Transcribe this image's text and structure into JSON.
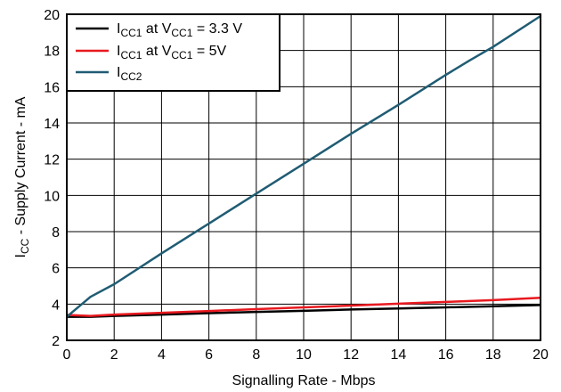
{
  "chart_data": {
    "type": "line",
    "xlabel": "Signalling Rate - Mbps",
    "ylabel": {
      "main": "I",
      "sub": "CC",
      "rest": " - Supply Current - mA"
    },
    "xlim": [
      0,
      20
    ],
    "ylim": [
      2,
      20
    ],
    "xticks": [
      0,
      2,
      4,
      6,
      8,
      10,
      12,
      14,
      16,
      18,
      20
    ],
    "yticks": [
      2,
      4,
      6,
      8,
      10,
      12,
      14,
      16,
      18,
      20
    ],
    "grid": true,
    "legend_position": "top-left",
    "series": [
      {
        "label_parts": [
          [
            "I",
            ""
          ],
          [
            "CC1",
            "sub"
          ],
          [
            " at V",
            ""
          ],
          [
            "CC1",
            "sub"
          ],
          [
            " = 3.3 V",
            ""
          ]
        ],
        "color": "#000000",
        "x": [
          0,
          1,
          2,
          4,
          6,
          8,
          10,
          12,
          14,
          16,
          18,
          20
        ],
        "y": [
          3.3,
          3.3,
          3.35,
          3.42,
          3.5,
          3.57,
          3.63,
          3.7,
          3.76,
          3.82,
          3.88,
          3.95
        ]
      },
      {
        "label_parts": [
          [
            "I",
            ""
          ],
          [
            "CC1",
            "sub"
          ],
          [
            " at V",
            ""
          ],
          [
            "CC1",
            "sub"
          ],
          [
            " = 5V",
            ""
          ]
        ],
        "color": "#e8191f",
        "x": [
          0,
          1,
          2,
          4,
          6,
          8,
          10,
          12,
          14,
          16,
          18,
          20
        ],
        "y": [
          3.4,
          3.35,
          3.42,
          3.52,
          3.62,
          3.72,
          3.82,
          3.92,
          4.02,
          4.12,
          4.22,
          4.35
        ]
      },
      {
        "label_parts": [
          [
            "I",
            ""
          ],
          [
            "CC2",
            "sub"
          ]
        ],
        "color": "#1f5c73",
        "x": [
          0,
          1,
          2,
          4,
          6,
          8,
          10,
          12,
          14,
          16,
          17,
          18,
          20
        ],
        "y": [
          3.3,
          4.4,
          5.1,
          6.8,
          8.45,
          10.1,
          11.75,
          13.4,
          15.0,
          16.65,
          17.45,
          18.2,
          19.9
        ]
      }
    ]
  }
}
